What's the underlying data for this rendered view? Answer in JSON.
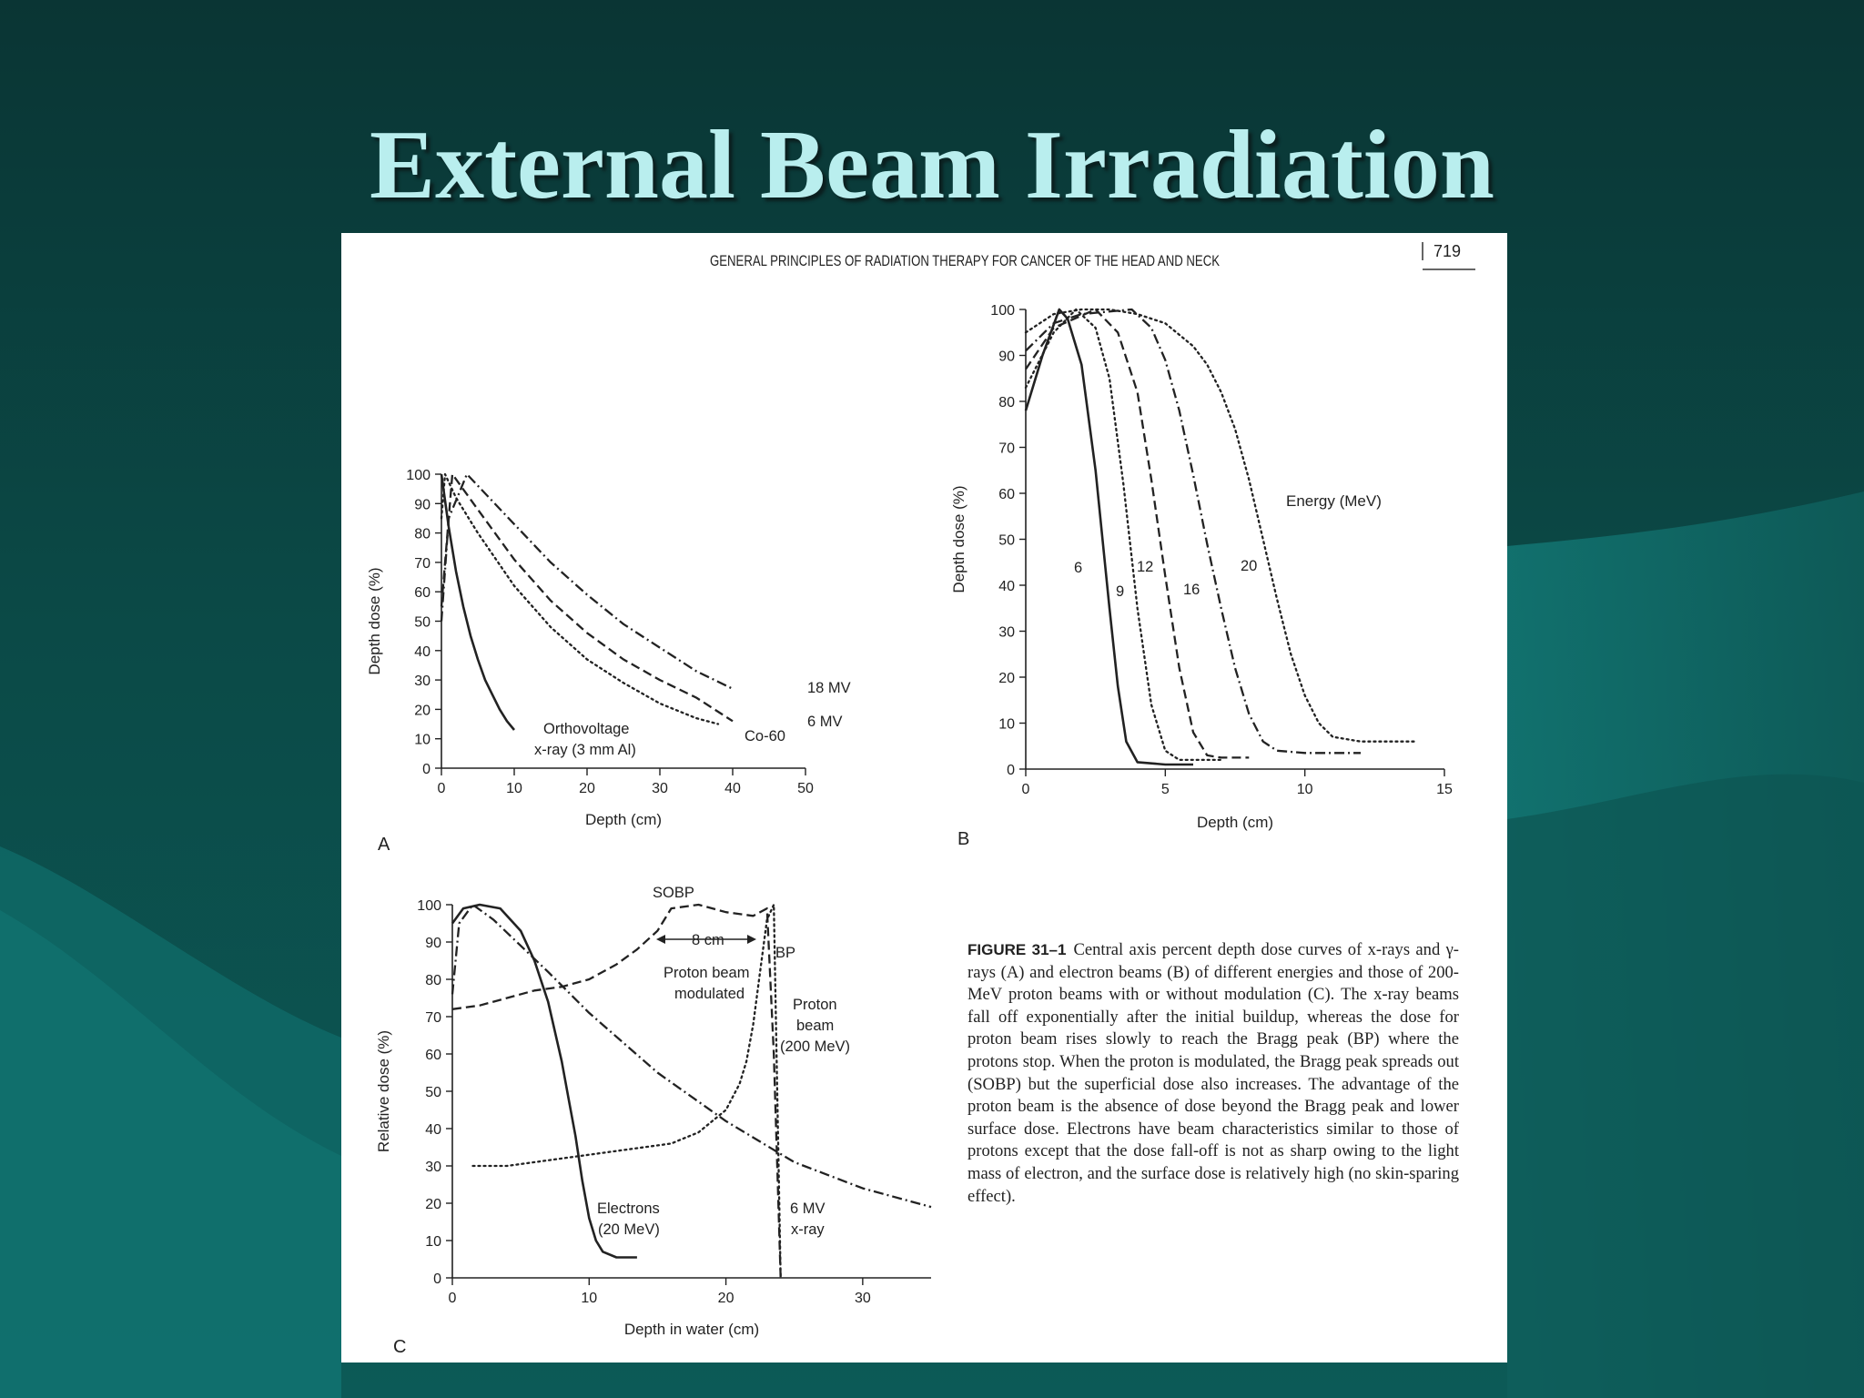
{
  "slide_title": "External Beam Irradiation",
  "running_head": "GENERAL PRINCIPLES OF RADIATION THERAPY FOR CANCER OF THE HEAD AND NECK",
  "page_number": "719",
  "colors": {
    "background": "#0a4845",
    "title": "#b9eeee",
    "page": "#ffffff",
    "ink": "#222222"
  },
  "caption": {
    "label": "FIGURE 31–1",
    "text": "Central axis percent depth dose curves of x-rays and γ-rays (A) and electron beams (B) of different energies and those of 200-MeV proton beams with or without modulation (C). The x-ray beams fall off exponentially after the initial buildup, whereas the dose for proton beam rises slowly to reach the Bragg peak (BP) where the protons stop. When the proton is modulated, the Bragg peak spreads out (SOBP) but the superficial dose also increases. The advantage of the proton beam is the absence of dose beyond the Bragg peak and lower surface dose. Electrons have beam characteristics similar to those of protons except that the dose fall-off is not as sharp owing to the light mass of electron, and the surface dose is relatively high (no skin-sparing effect)."
  },
  "chart_data": [
    {
      "panel": "A",
      "type": "line",
      "xlabel": "Depth (cm)",
      "ylabel": "Depth dose (%)",
      "xlim": [
        0,
        50
      ],
      "ylim": [
        0,
        100
      ],
      "xticks": [
        0,
        10,
        20,
        30,
        40,
        50
      ],
      "yticks": [
        0,
        10,
        20,
        30,
        40,
        50,
        60,
        70,
        80,
        90,
        100
      ],
      "grid": false,
      "series": [
        {
          "name": "Orthovoltage x-ray (3 mm Al)",
          "style": "solid",
          "x": [
            0,
            0.5,
            1,
            2,
            3,
            4,
            5,
            6,
            7,
            8,
            9,
            10
          ],
          "y": [
            100,
            91,
            82,
            67,
            55,
            45,
            37,
            30,
            25,
            20,
            16,
            13
          ]
        },
        {
          "name": "Co-60",
          "style": "dotted",
          "x": [
            0,
            0.5,
            2,
            5,
            10,
            15,
            20,
            25,
            30,
            35,
            38
          ],
          "y": [
            85,
            100,
            92,
            80,
            62,
            48,
            37,
            29,
            22,
            17,
            15
          ]
        },
        {
          "name": "6 MV",
          "style": "dashed",
          "x": [
            0,
            1.5,
            5,
            10,
            15,
            20,
            25,
            30,
            35,
            40
          ],
          "y": [
            55,
            100,
            88,
            71,
            57,
            46,
            37,
            30,
            24,
            16
          ]
        },
        {
          "name": "18 MV",
          "style": "dashdot",
          "x": [
            0,
            1,
            3.5,
            10,
            15,
            20,
            25,
            30,
            35,
            40
          ],
          "y": [
            50,
            85,
            100,
            83,
            70,
            59,
            49,
            41,
            33,
            27
          ]
        }
      ],
      "annotations": [
        "Orthovoltage",
        "x-ray (3 mm Al)",
        "Co-60",
        "6 MV",
        "18 MV"
      ]
    },
    {
      "panel": "B",
      "type": "line",
      "xlabel": "Depth (cm)",
      "ylabel": "Depth dose (%)",
      "xlim": [
        0,
        15
      ],
      "ylim": [
        0,
        100
      ],
      "xticks": [
        0,
        5,
        10,
        15
      ],
      "yticks": [
        0,
        10,
        20,
        30,
        40,
        50,
        60,
        70,
        80,
        90,
        100
      ],
      "grid": false,
      "legend_title": "Energy (MeV)",
      "series": [
        {
          "name": "6",
          "style": "solid",
          "x": [
            0,
            0.6,
            1.2,
            1.5,
            2,
            2.5,
            3,
            3.3,
            3.6,
            4,
            5,
            6
          ],
          "y": [
            78,
            90,
            100,
            98,
            88,
            65,
            35,
            18,
            6,
            1.5,
            1,
            1
          ]
        },
        {
          "name": "9",
          "style": "dotted",
          "x": [
            0,
            1,
            1.8,
            2.5,
            3,
            3.5,
            4,
            4.5,
            5,
            5.5,
            6,
            7
          ],
          "y": [
            83,
            95,
            100,
            96,
            85,
            62,
            35,
            14,
            4,
            2,
            2,
            2
          ]
        },
        {
          "name": "12",
          "style": "dashed",
          "x": [
            0,
            1,
            2.5,
            3.3,
            4,
            4.5,
            5,
            5.5,
            6,
            6.5,
            7,
            8
          ],
          "y": [
            87,
            96,
            100,
            95,
            82,
            63,
            42,
            22,
            8,
            3,
            2.5,
            2.5
          ]
        },
        {
          "name": "16",
          "style": "dashdot",
          "x": [
            0,
            1,
            2,
            3.8,
            4.5,
            5,
            5.5,
            6,
            6.5,
            7,
            7.5,
            8,
            8.5,
            9,
            10,
            11,
            12
          ],
          "y": [
            91,
            97,
            99,
            100,
            96,
            89,
            78,
            64,
            49,
            35,
            22,
            12,
            6,
            4,
            3.5,
            3.5,
            3.5
          ]
        },
        {
          "name": "20",
          "style": "dotted",
          "x": [
            0,
            1,
            2,
            3,
            4,
            5,
            6,
            6.5,
            7,
            7.5,
            8,
            8.5,
            9,
            9.5,
            10,
            10.5,
            11,
            12,
            13,
            14
          ],
          "y": [
            95,
            99,
            100,
            100,
            99,
            97,
            92,
            88,
            82,
            74,
            63,
            50,
            37,
            25,
            16,
            10,
            7,
            6,
            6,
            6
          ]
        }
      ],
      "annotations": [
        "6",
        "9",
        "12",
        "16",
        "20"
      ]
    },
    {
      "panel": "C",
      "type": "line",
      "xlabel": "Depth in water (cm)",
      "ylabel": "Relative dose (%)",
      "xlim": [
        0,
        35
      ],
      "ylim": [
        0,
        100
      ],
      "xticks": [
        0,
        10,
        20,
        30
      ],
      "yticks": [
        0,
        10,
        20,
        30,
        40,
        50,
        60,
        70,
        80,
        90,
        100
      ],
      "grid": false,
      "series": [
        {
          "name": "Electrons (20 MeV)",
          "style": "solid",
          "x": [
            0,
            0.8,
            2,
            3.5,
            5,
            6,
            7,
            8,
            8.5,
            9,
            9.5,
            10,
            10.5,
            11,
            12,
            13.5
          ],
          "y": [
            95,
            99,
            100,
            99,
            93,
            85,
            74,
            58,
            48,
            38,
            26,
            16,
            10,
            7,
            5.5,
            5.5
          ]
        },
        {
          "name": "Proton beam modulated",
          "style": "dashed",
          "x": [
            0,
            2,
            4,
            6,
            8,
            10,
            12,
            13.5,
            15,
            16,
            18,
            20,
            22,
            23,
            23.5,
            24
          ],
          "y": [
            72,
            73,
            75,
            77,
            78,
            80,
            84,
            88,
            93,
            99,
            100,
            98,
            97,
            99,
            60,
            0
          ]
        },
        {
          "name": "Proton beam (200 MeV)",
          "style": "dotted",
          "x": [
            1.5,
            4,
            8,
            12,
            16,
            18,
            20,
            21,
            21.5,
            22,
            22.5,
            23,
            23.5,
            24
          ],
          "y": [
            30,
            30,
            32,
            34,
            36,
            39,
            45,
            52,
            58,
            68,
            82,
            96,
            100,
            0
          ]
        },
        {
          "name": "6 MV x-ray",
          "style": "dashdot",
          "x": [
            0,
            0.5,
            1.5,
            3,
            5,
            7,
            10,
            15,
            20,
            25,
            30,
            35
          ],
          "y": [
            76,
            95,
            100,
            96,
            89,
            82,
            71,
            55,
            42,
            31,
            24,
            19
          ]
        }
      ],
      "annotations": [
        "SOBP",
        "8 cm",
        "BP",
        "Proton beam",
        "modulated",
        "Proton",
        "beam",
        "(200 MeV)",
        "Electrons",
        "(20 MeV)",
        "6 MV",
        "x-ray"
      ]
    }
  ]
}
